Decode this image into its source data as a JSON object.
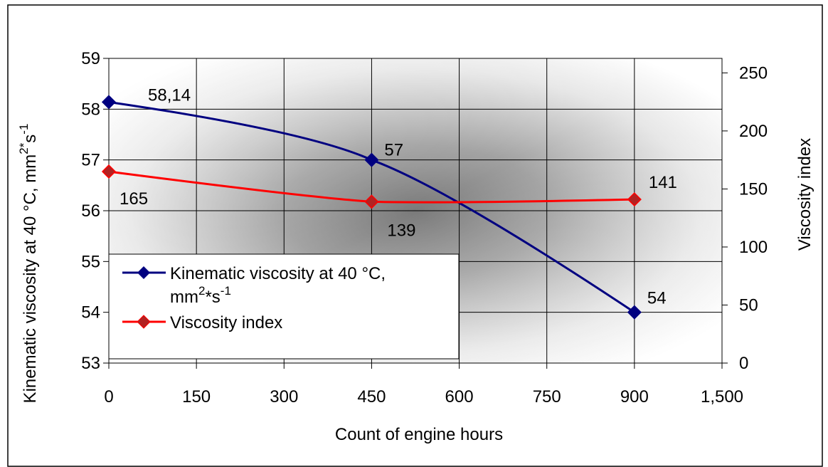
{
  "chart_data": {
    "type": "line",
    "title": "",
    "x": {
      "label": "Count of engine hours",
      "tick_labels": [
        "0",
        "150",
        "300",
        "450",
        "600",
        "750",
        "900",
        "1,500"
      ]
    },
    "y_left": {
      "label": "Kinematic viscosity at 40 °C, mm",
      "label_sup1": "2*",
      "label_mid": "s",
      "label_sup2": "-1",
      "ylim": [
        53,
        59
      ],
      "ticks": [
        53,
        54,
        55,
        56,
        57,
        58,
        59
      ]
    },
    "y_right": {
      "label": "Viscosity index",
      "ylim": [
        0,
        262.5
      ],
      "ticks": [
        0,
        50,
        100,
        150,
        200,
        250
      ]
    },
    "grid": true,
    "legend_position": "lower-left",
    "series": [
      {
        "name": "Kinematic viscosity at 40 °C, mm²*s⁻¹",
        "legend_line1": "Kinematic viscosity at 40 °C,",
        "legend_line2_base": "mm",
        "legend_line2_sup1": "2",
        "legend_line2_mid": "*s",
        "legend_line2_sup2": "-1",
        "axis": "left",
        "color": "#000080",
        "x": [
          0,
          450,
          900
        ],
        "values": [
          58.14,
          57,
          54
        ],
        "labels": [
          "58,14",
          "57",
          "54"
        ]
      },
      {
        "name": "Viscosity index",
        "axis": "right",
        "color": "#ff0000",
        "marker_color": "#b22222",
        "x": [
          0,
          450,
          900
        ],
        "values": [
          165,
          139,
          141
        ],
        "labels": [
          "165",
          "139",
          "141"
        ]
      }
    ]
  }
}
